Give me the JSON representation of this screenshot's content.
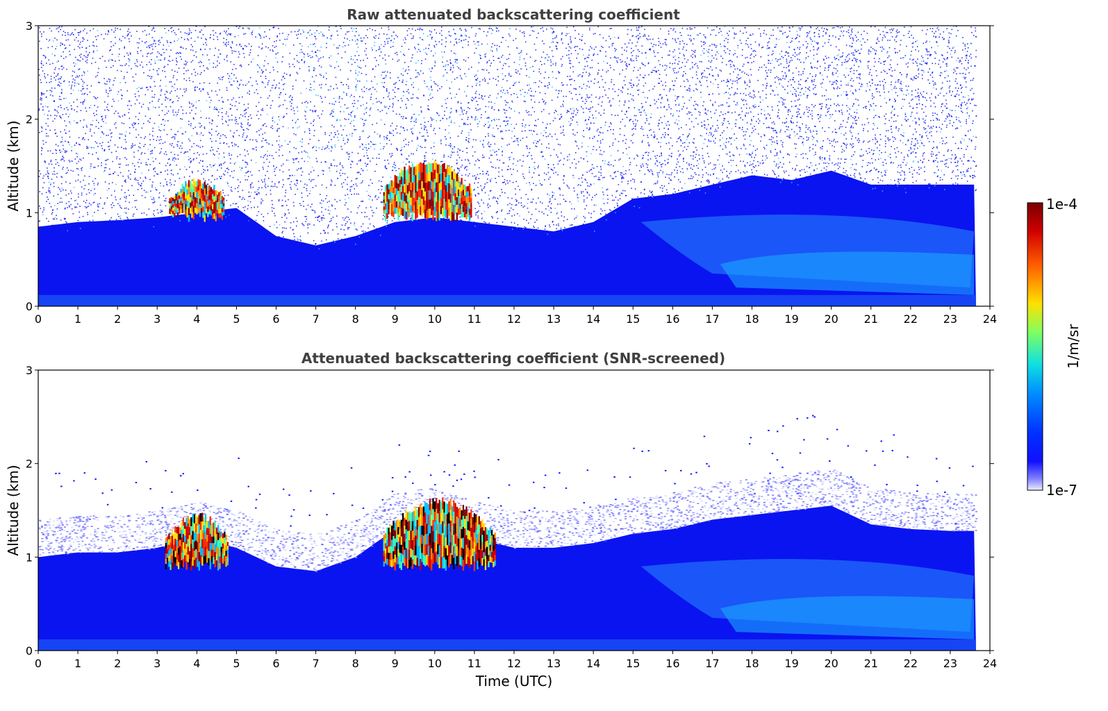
{
  "chart_data": [
    {
      "type": "heatmap",
      "title": "Raw attenuated backscattering coefficient",
      "xlabel": "",
      "ylabel": "Altitude (km)",
      "xlim": [
        0,
        24
      ],
      "ylim": [
        0,
        3
      ],
      "xticks": [
        0,
        1,
        2,
        3,
        4,
        5,
        6,
        7,
        8,
        9,
        10,
        11,
        12,
        13,
        14,
        15,
        16,
        17,
        18,
        19,
        20,
        21,
        22,
        23,
        24
      ],
      "yticks": [
        0,
        1,
        2,
        3
      ],
      "data_end_time": 23.65,
      "boundary_layer_top_km": [
        [
          0,
          0.85
        ],
        [
          1,
          0.9
        ],
        [
          2,
          0.92
        ],
        [
          3,
          0.95
        ],
        [
          4,
          1.0
        ],
        [
          5,
          1.05
        ],
        [
          6,
          0.75
        ],
        [
          7,
          0.65
        ],
        [
          8,
          0.75
        ],
        [
          9,
          0.9
        ],
        [
          10,
          0.95
        ],
        [
          11,
          0.9
        ],
        [
          12,
          0.85
        ],
        [
          13,
          0.8
        ],
        [
          14,
          0.9
        ],
        [
          15,
          1.15
        ],
        [
          16,
          1.2
        ],
        [
          17,
          1.3
        ],
        [
          18,
          1.4
        ],
        [
          19,
          1.35
        ],
        [
          20,
          1.45
        ],
        [
          21,
          1.3
        ],
        [
          22,
          1.3
        ],
        [
          23,
          1.3
        ],
        [
          23.65,
          1.3
        ]
      ],
      "cloud_features": [
        {
          "time_start": 3.3,
          "time_end": 4.7,
          "alt_low_km": 0.9,
          "alt_high_km": 1.35
        },
        {
          "time_start": 8.7,
          "time_end": 10.9,
          "alt_low_km": 0.9,
          "alt_high_km": 1.55
        }
      ],
      "noise": "high",
      "colormap": "jet"
    },
    {
      "type": "heatmap",
      "title": "Attenuated backscattering coefficient (SNR-screened)",
      "xlabel": "Time (UTC)",
      "ylabel": "Altitude (km)",
      "xlim": [
        0,
        24
      ],
      "ylim": [
        0,
        3
      ],
      "xticks": [
        0,
        1,
        2,
        3,
        4,
        5,
        6,
        7,
        8,
        9,
        10,
        11,
        12,
        13,
        14,
        15,
        16,
        17,
        18,
        19,
        20,
        21,
        22,
        23,
        24
      ],
      "yticks": [
        0,
        1,
        2,
        3
      ],
      "data_end_time": 23.65,
      "boundary_layer_top_km": [
        [
          0,
          1.0
        ],
        [
          1,
          1.05
        ],
        [
          2,
          1.05
        ],
        [
          3,
          1.1
        ],
        [
          4,
          1.2
        ],
        [
          5,
          1.1
        ],
        [
          6,
          0.9
        ],
        [
          7,
          0.85
        ],
        [
          8,
          1.0
        ],
        [
          9,
          1.3
        ],
        [
          10,
          1.35
        ],
        [
          11,
          1.2
        ],
        [
          12,
          1.1
        ],
        [
          13,
          1.1
        ],
        [
          14,
          1.15
        ],
        [
          15,
          1.25
        ],
        [
          16,
          1.3
        ],
        [
          17,
          1.4
        ],
        [
          18,
          1.45
        ],
        [
          19,
          1.5
        ],
        [
          20,
          1.55
        ],
        [
          21,
          1.35
        ],
        [
          22,
          1.3
        ],
        [
          23,
          1.28
        ],
        [
          23.65,
          1.28
        ]
      ],
      "cloud_features": [
        {
          "time_start": 3.2,
          "time_end": 4.8,
          "alt_low_km": 0.85,
          "alt_high_km": 1.45
        },
        {
          "time_start": 8.7,
          "time_end": 11.5,
          "alt_low_km": 0.85,
          "alt_high_km": 1.6
        }
      ],
      "noise": "screened",
      "colormap": "jet"
    }
  ],
  "colorbar": {
    "max_label": "1e-4",
    "min_label": "1e-7",
    "unit_label": "1/m/sr",
    "colors": [
      "#800000",
      "#c00000",
      "#ff2000",
      "#ff8000",
      "#ffc800",
      "#e6ff10",
      "#80ff70",
      "#20ffd0",
      "#00c8ff",
      "#0080ff",
      "#0048ff",
      "#0010ff",
      "#2020ff",
      "#6060ff",
      "#a0a0ff",
      "#e0e0ff"
    ]
  }
}
